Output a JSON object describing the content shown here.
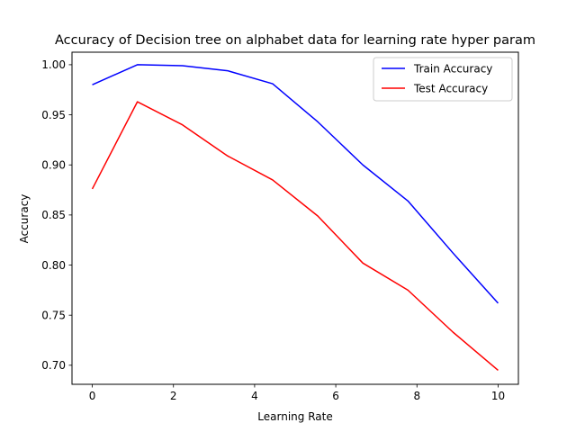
{
  "chart_data": {
    "type": "line",
    "title": "Accuracy of Decision tree on alphabet data for learning rate hyper param",
    "xlabel": "Learning Rate",
    "ylabel": "Accuracy",
    "xlim": [
      -0.5,
      10.5
    ],
    "ylim": [
      0.681,
      1.0125
    ],
    "xticks": [
      0,
      2,
      4,
      6,
      8,
      10
    ],
    "xtick_labels": [
      "0",
      "2",
      "4",
      "6",
      "8",
      "10"
    ],
    "yticks": [
      0.7,
      0.75,
      0.8,
      0.85,
      0.9,
      0.95,
      1.0
    ],
    "ytick_labels": [
      "0.70",
      "0.75",
      "0.80",
      "0.85",
      "0.90",
      "0.95",
      "1.00"
    ],
    "grid": false,
    "legend_position": "top-right",
    "x": [
      0,
      1.111,
      2.222,
      3.333,
      4.444,
      5.556,
      6.667,
      7.778,
      8.889,
      10
    ],
    "series": [
      {
        "name": "Train Accuracy",
        "color": "#0000ff",
        "values": [
          0.98,
          1.0,
          0.999,
          0.994,
          0.981,
          0.943,
          0.9,
          0.864,
          0.812,
          0.762
        ]
      },
      {
        "name": "Test Accuracy",
        "color": "#ff0000",
        "values": [
          0.876,
          0.963,
          0.94,
          0.909,
          0.885,
          0.849,
          0.802,
          0.775,
          0.733,
          0.695
        ]
      }
    ]
  }
}
